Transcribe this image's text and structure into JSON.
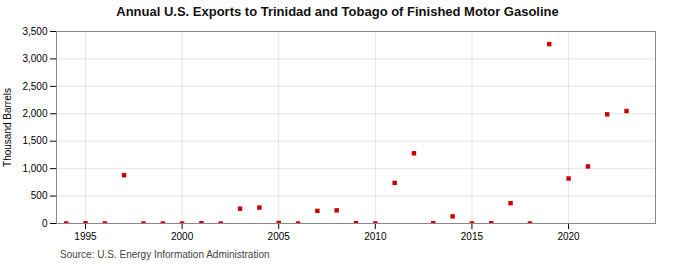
{
  "chart_data": {
    "type": "scatter",
    "title": "Annual U.S. Exports to Trinidad and Tobago of Finished Motor Gasoline",
    "ylabel": "Thousand Barrels",
    "source": "Source: U.S. Energy Information Administration",
    "x": [
      1994,
      1995,
      1996,
      1997,
      1998,
      1999,
      2000,
      2001,
      2002,
      2003,
      2004,
      2005,
      2006,
      2007,
      2008,
      2009,
      2010,
      2011,
      2012,
      2013,
      2014,
      2015,
      2016,
      2017,
      2018,
      2019,
      2020,
      2021,
      2022,
      2023
    ],
    "values": [
      0,
      5,
      0,
      880,
      0,
      0,
      0,
      5,
      0,
      270,
      290,
      10,
      0,
      230,
      240,
      5,
      0,
      740,
      1280,
      5,
      130,
      0,
      5,
      370,
      0,
      3270,
      820,
      1040,
      1990,
      2050
    ],
    "color": "#cc0000",
    "marker": "square",
    "xlim": [
      1993.5,
      2024.5
    ],
    "xticks": [
      1995,
      2000,
      2005,
      2010,
      2015,
      2020
    ],
    "ylim": [
      0,
      3500
    ],
    "yticks": [
      0,
      500,
      {
        "value": 1000,
        "label": "1,000"
      },
      {
        "value": 1500,
        "label": "1,500"
      },
      {
        "value": 2000,
        "label": "2,000"
      },
      {
        "value": 2500,
        "label": "2,500"
      },
      {
        "value": 3000,
        "label": "3,000"
      },
      {
        "value": 3500,
        "label": "3,500"
      }
    ],
    "grid": true
  }
}
